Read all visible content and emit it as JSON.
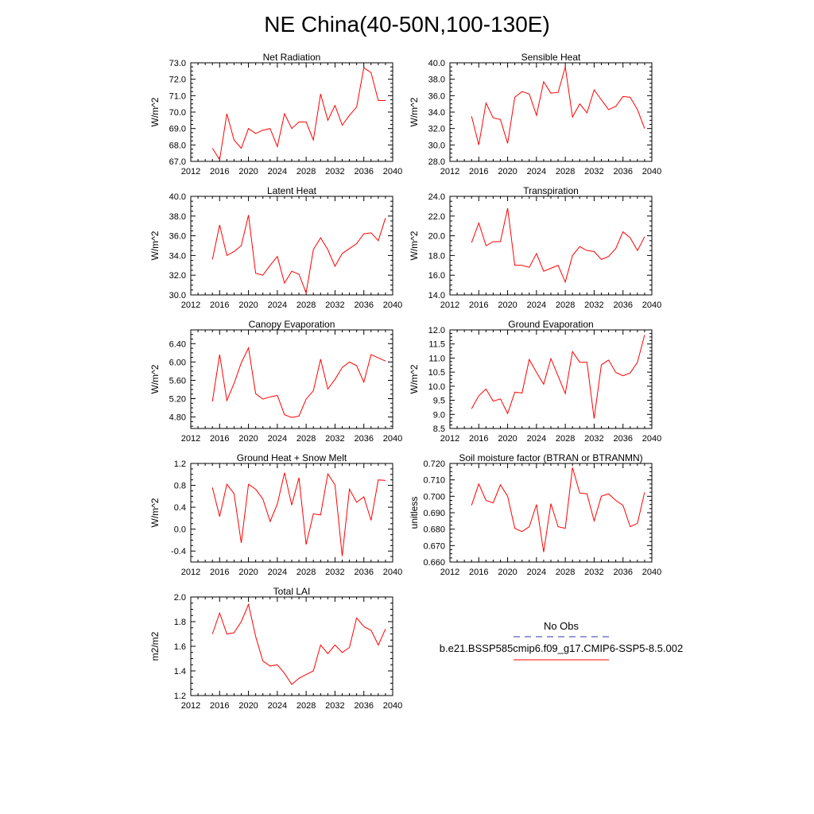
{
  "title": "NE China(40-50N,100-130E)",
  "colors": {
    "model": "#ff0000",
    "obs": "#3333aa",
    "axis": "#000000"
  },
  "legend": {
    "obs_label": "No Obs",
    "model_label": "b.e21.BSSP585cmip6.f09_g17.CMIP6-SSP5-8.5.002"
  },
  "chart_data": [
    {
      "type": "line",
      "title": "Net Radiation",
      "ylabel": "W/m^2",
      "xlim": [
        2012,
        2040
      ],
      "xticks": [
        "2012",
        "2016",
        "2020",
        "2024",
        "2028",
        "2032",
        "2036",
        "2040"
      ],
      "ylim": [
        67.0,
        73.0
      ],
      "yticks": [
        "67.0",
        "68.0",
        "69.0",
        "70.0",
        "71.0",
        "72.0",
        "73.0"
      ],
      "x": [
        2015,
        2016,
        2017,
        2018,
        2019,
        2020,
        2021,
        2022,
        2023,
        2024,
        2025,
        2026,
        2027,
        2028,
        2029,
        2030,
        2031,
        2032,
        2033,
        2034,
        2035,
        2036,
        2037,
        2038,
        2039
      ],
      "values": [
        67.8,
        67.1,
        69.9,
        68.3,
        67.8,
        69.0,
        68.7,
        68.9,
        69.0,
        67.9,
        69.9,
        69.0,
        69.4,
        69.4,
        68.3,
        71.1,
        69.5,
        70.4,
        69.2,
        69.8,
        70.3,
        72.7,
        72.4,
        70.7,
        70.7
      ]
    },
    {
      "type": "line",
      "title": "Sensible Heat",
      "ylabel": "W/m^2",
      "xlim": [
        2012,
        2040
      ],
      "xticks": [
        "2012",
        "2016",
        "2020",
        "2024",
        "2028",
        "2032",
        "2036",
        "2040"
      ],
      "ylim": [
        28.0,
        40.0
      ],
      "yticks": [
        "28.0",
        "30.0",
        "32.0",
        "34.0",
        "36.0",
        "38.0",
        "40.0"
      ],
      "x": [
        2015,
        2016,
        2017,
        2018,
        2019,
        2020,
        2021,
        2022,
        2023,
        2024,
        2025,
        2026,
        2027,
        2028,
        2029,
        2030,
        2031,
        2032,
        2033,
        2034,
        2035,
        2036,
        2037,
        2038,
        2039
      ],
      "values": [
        33.5,
        30.0,
        35.1,
        33.3,
        33.1,
        30.2,
        35.8,
        36.5,
        36.2,
        33.6,
        37.7,
        36.3,
        36.4,
        39.5,
        33.4,
        35.0,
        33.9,
        36.7,
        35.5,
        34.3,
        34.7,
        35.9,
        35.8,
        34.3,
        32.0
      ]
    },
    {
      "type": "line",
      "title": "Latent Heat",
      "ylabel": "W/m^2",
      "xlim": [
        2012,
        2040
      ],
      "xticks": [
        "2012",
        "2016",
        "2020",
        "2024",
        "2028",
        "2032",
        "2036",
        "2040"
      ],
      "ylim": [
        30.0,
        40.0
      ],
      "yticks": [
        "30.0",
        "32.0",
        "34.0",
        "36.0",
        "38.0",
        "40.0"
      ],
      "x": [
        2015,
        2016,
        2017,
        2018,
        2019,
        2020,
        2021,
        2022,
        2023,
        2024,
        2025,
        2026,
        2027,
        2028,
        2029,
        2030,
        2031,
        2032,
        2033,
        2034,
        2035,
        2036,
        2037,
        2038,
        2039
      ],
      "values": [
        33.6,
        37.1,
        34.0,
        34.4,
        35.0,
        38.1,
        32.2,
        32.0,
        33.0,
        33.9,
        31.2,
        32.4,
        32.1,
        30.2,
        34.6,
        35.8,
        34.6,
        32.9,
        34.2,
        34.7,
        35.2,
        36.2,
        36.3,
        35.5,
        37.8
      ]
    },
    {
      "type": "line",
      "title": "Transpiration",
      "ylabel": "W/m^2",
      "xlim": [
        2012,
        2040
      ],
      "xticks": [
        "2012",
        "2016",
        "2020",
        "2024",
        "2028",
        "2032",
        "2036",
        "2040"
      ],
      "ylim": [
        14.0,
        24.0
      ],
      "yticks": [
        "14.0",
        "16.0",
        "18.0",
        "20.0",
        "22.0",
        "24.0"
      ],
      "x": [
        2015,
        2016,
        2017,
        2018,
        2019,
        2020,
        2021,
        2022,
        2023,
        2024,
        2025,
        2026,
        2027,
        2028,
        2029,
        2030,
        2031,
        2032,
        2033,
        2034,
        2035,
        2036,
        2037,
        2038,
        2039
      ],
      "values": [
        19.3,
        21.3,
        19.0,
        19.4,
        19.4,
        22.8,
        17.0,
        17.0,
        16.8,
        18.2,
        16.4,
        16.7,
        17.0,
        15.3,
        18.0,
        18.9,
        18.5,
        18.4,
        17.6,
        17.9,
        18.7,
        20.4,
        19.8,
        18.5,
        19.9
      ]
    },
    {
      "type": "line",
      "title": "Canopy Evaporation",
      "ylabel": "W/m^2",
      "xlim": [
        2012,
        2040
      ],
      "xticks": [
        "2012",
        "2016",
        "2020",
        "2024",
        "2028",
        "2032",
        "2036",
        "2040"
      ],
      "ylim": [
        4.55,
        6.7
      ],
      "yticks": [
        "4.80",
        "5.20",
        "5.60",
        "6.00",
        "6.40"
      ],
      "ytick_values": [
        4.8,
        5.2,
        5.6,
        6.0,
        6.4
      ],
      "x": [
        2015,
        2016,
        2017,
        2018,
        2019,
        2020,
        2021,
        2022,
        2023,
        2024,
        2025,
        2026,
        2027,
        2028,
        2029,
        2030,
        2031,
        2032,
        2033,
        2034,
        2035,
        2036,
        2037,
        2038,
        2039
      ],
      "values": [
        5.14,
        6.16,
        5.16,
        5.53,
        5.98,
        6.31,
        5.31,
        5.19,
        5.24,
        5.27,
        4.85,
        4.79,
        4.82,
        5.19,
        5.37,
        6.06,
        5.41,
        5.62,
        5.88,
        6.0,
        5.92,
        5.56,
        6.16,
        6.09,
        6.02
      ]
    },
    {
      "type": "line",
      "title": "Ground Evaporation",
      "ylabel": "W/m^2",
      "xlim": [
        2012,
        2040
      ],
      "xticks": [
        "2012",
        "2016",
        "2020",
        "2024",
        "2028",
        "2032",
        "2036",
        "2040"
      ],
      "ylim": [
        8.5,
        12.0
      ],
      "yticks": [
        "8.5",
        "9.0",
        "9.5",
        "10.0",
        "10.5",
        "11.0",
        "11.5",
        "12.0"
      ],
      "x": [
        2015,
        2016,
        2017,
        2018,
        2019,
        2020,
        2021,
        2022,
        2023,
        2024,
        2025,
        2026,
        2027,
        2028,
        2029,
        2030,
        2031,
        2032,
        2033,
        2034,
        2035,
        2036,
        2037,
        2038,
        2039
      ],
      "values": [
        9.2,
        9.66,
        9.9,
        9.47,
        9.55,
        9.03,
        9.79,
        9.76,
        10.95,
        10.49,
        10.07,
        10.98,
        10.36,
        9.74,
        11.23,
        10.85,
        10.85,
        8.85,
        10.76,
        10.93,
        10.49,
        10.37,
        10.47,
        10.85,
        11.82
      ]
    },
    {
      "type": "line",
      "title": "Ground Heat + Snow Melt",
      "ylabel": "W/m^2",
      "xlim": [
        2012,
        2040
      ],
      "xticks": [
        "2012",
        "2016",
        "2020",
        "2024",
        "2028",
        "2032",
        "2036",
        "2040"
      ],
      "ylim": [
        -0.6,
        1.2
      ],
      "yticks": [
        "-0.4",
        "0.0",
        "0.4",
        "0.8",
        "1.2"
      ],
      "ytick_values": [
        -0.4,
        0.0,
        0.4,
        0.8,
        1.2
      ],
      "x": [
        2015,
        2016,
        2017,
        2018,
        2019,
        2020,
        2021,
        2022,
        2023,
        2024,
        2025,
        2026,
        2027,
        2028,
        2029,
        2030,
        2031,
        2032,
        2033,
        2034,
        2035,
        2036,
        2037,
        2038,
        2039
      ],
      "values": [
        0.76,
        0.23,
        0.82,
        0.65,
        -0.25,
        0.82,
        0.73,
        0.55,
        0.14,
        0.46,
        1.03,
        0.44,
        0.94,
        -0.28,
        0.28,
        0.26,
        1.01,
        0.81,
        -0.49,
        0.73,
        0.49,
        0.59,
        0.16,
        0.9,
        0.89
      ]
    },
    {
      "type": "line",
      "title": "Soil moisture factor (BTRAN or BTRANMN)",
      "ylabel": "unitless",
      "xlim": [
        2012,
        2040
      ],
      "xticks": [
        "2012",
        "2016",
        "2020",
        "2024",
        "2028",
        "2032",
        "2036",
        "2040"
      ],
      "ylim": [
        0.66,
        0.72
      ],
      "yticks": [
        "0.660",
        "0.670",
        "0.680",
        "0.690",
        "0.700",
        "0.710",
        "0.720"
      ],
      "x": [
        2015,
        2016,
        2017,
        2018,
        2019,
        2020,
        2021,
        2022,
        2023,
        2024,
        2025,
        2026,
        2027,
        2028,
        2029,
        2030,
        2031,
        2032,
        2033,
        2034,
        2035,
        2036,
        2037,
        2038,
        2039
      ],
      "values": [
        0.6945,
        0.7075,
        0.6975,
        0.696,
        0.707,
        0.7,
        0.6805,
        0.6785,
        0.6815,
        0.695,
        0.666,
        0.6955,
        0.6815,
        0.6805,
        0.7175,
        0.702,
        0.7015,
        0.685,
        0.7,
        0.7015,
        0.6975,
        0.6945,
        0.6815,
        0.6835,
        0.7025
      ]
    },
    {
      "type": "line",
      "title": "Total LAI",
      "ylabel": "m2/m2",
      "xlim": [
        2012,
        2040
      ],
      "xticks": [
        "2012",
        "2016",
        "2020",
        "2024",
        "2028",
        "2032",
        "2036",
        "2040"
      ],
      "ylim": [
        1.2,
        2.0
      ],
      "yticks": [
        "1.2",
        "1.4",
        "1.6",
        "1.8",
        "2.0"
      ],
      "x": [
        2015,
        2016,
        2017,
        2018,
        2019,
        2020,
        2021,
        2022,
        2023,
        2024,
        2025,
        2026,
        2027,
        2028,
        2029,
        2030,
        2031,
        2032,
        2033,
        2034,
        2035,
        2036,
        2037,
        2038,
        2039
      ],
      "values": [
        1.7,
        1.87,
        1.7,
        1.71,
        1.8,
        1.94,
        1.68,
        1.48,
        1.44,
        1.45,
        1.38,
        1.29,
        1.34,
        1.37,
        1.4,
        1.61,
        1.54,
        1.61,
        1.55,
        1.59,
        1.83,
        1.76,
        1.73,
        1.61,
        1.74
      ]
    }
  ]
}
